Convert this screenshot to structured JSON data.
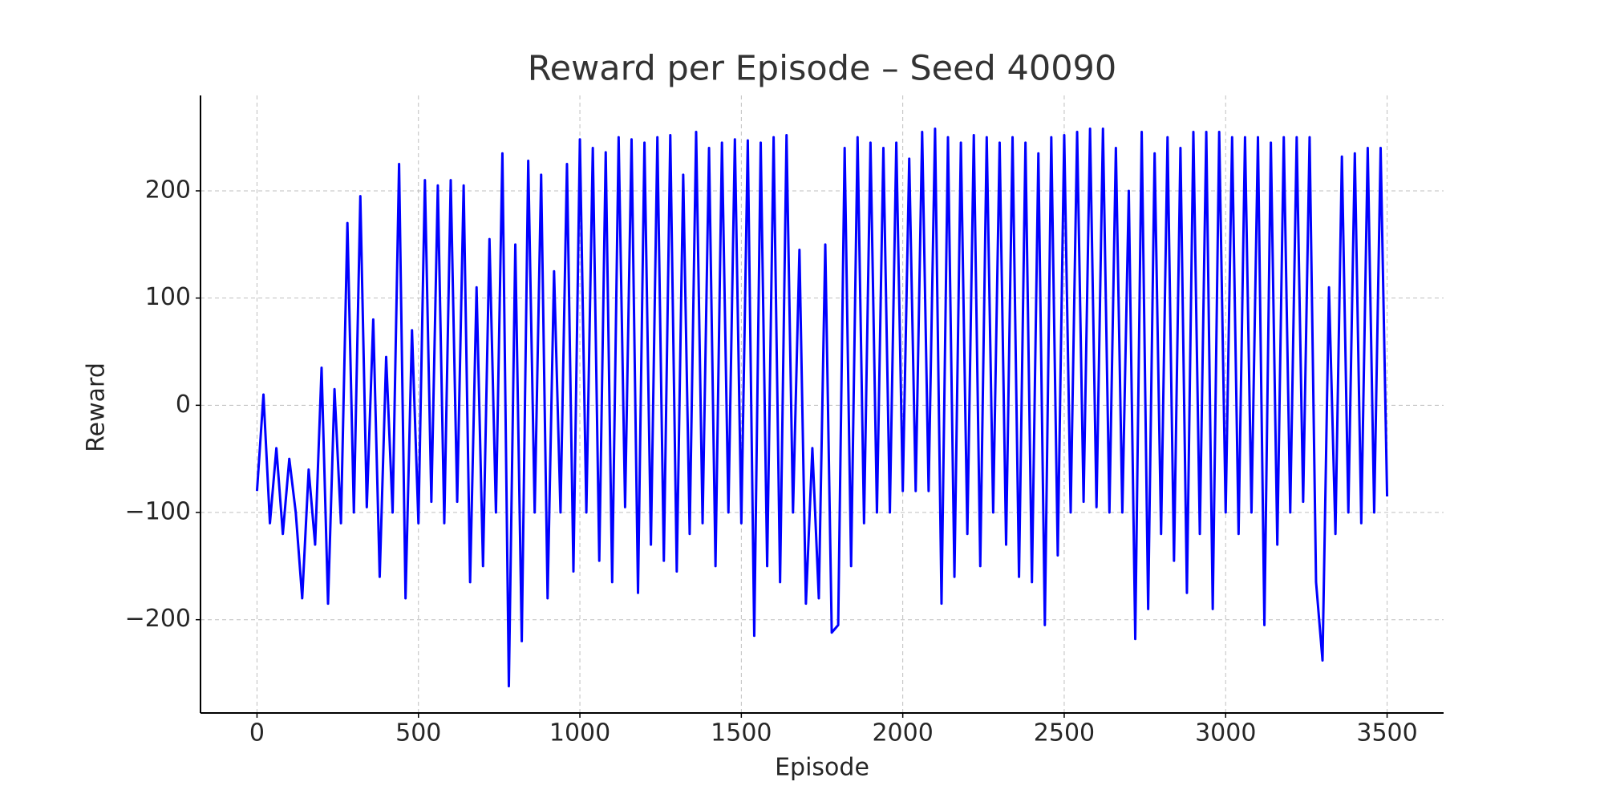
{
  "chart_data": {
    "type": "line",
    "title": "Reward per Episode – Seed 40090",
    "x_label": "Episode",
    "y_label": "Reward",
    "x": [
      0,
      20,
      40,
      60,
      80,
      100,
      120,
      140,
      160,
      180,
      200,
      220,
      240,
      260,
      280,
      300,
      320,
      340,
      360,
      380,
      400,
      420,
      440,
      460,
      480,
      500,
      520,
      540,
      560,
      580,
      600,
      620,
      640,
      660,
      680,
      700,
      720,
      740,
      760,
      780,
      800,
      820,
      840,
      860,
      880,
      900,
      920,
      940,
      960,
      980,
      1000,
      1020,
      1040,
      1060,
      1080,
      1100,
      1120,
      1140,
      1160,
      1180,
      1200,
      1220,
      1240,
      1260,
      1280,
      1300,
      1320,
      1340,
      1360,
      1380,
      1400,
      1420,
      1440,
      1460,
      1480,
      1500,
      1520,
      1540,
      1560,
      1580,
      1600,
      1620,
      1640,
      1660,
      1680,
      1700,
      1720,
      1740,
      1760,
      1780,
      1800,
      1820,
      1840,
      1860,
      1880,
      1900,
      1920,
      1940,
      1960,
      1980,
      2000,
      2020,
      2040,
      2060,
      2080,
      2100,
      2120,
      2140,
      2160,
      2180,
      2200,
      2220,
      2240,
      2260,
      2280,
      2300,
      2320,
      2340,
      2360,
      2380,
      2400,
      2420,
      2440,
      2460,
      2480,
      2500,
      2520,
      2540,
      2560,
      2580,
      2600,
      2620,
      2640,
      2660,
      2680,
      2700,
      2720,
      2740,
      2760,
      2780,
      2800,
      2820,
      2840,
      2860,
      2880,
      2900,
      2920,
      2940,
      2960,
      2980,
      3000,
      3020,
      3040,
      3060,
      3080,
      3100,
      3120,
      3140,
      3160,
      3180,
      3200,
      3220,
      3240,
      3260,
      3280,
      3300,
      3320,
      3340,
      3360,
      3380,
      3400,
      3420,
      3440,
      3460,
      3480,
      3500
    ],
    "values": [
      -80,
      10,
      -110,
      -40,
      -120,
      -50,
      -100,
      -180,
      -60,
      -130,
      35,
      -185,
      15,
      -110,
      170,
      -100,
      195,
      -95,
      80,
      -160,
      45,
      -100,
      225,
      -180,
      70,
      -110,
      210,
      -90,
      205,
      -110,
      210,
      -90,
      205,
      -165,
      110,
      -150,
      155,
      -100,
      235,
      -262,
      150,
      -220,
      228,
      -100,
      215,
      -180,
      125,
      -100,
      225,
      -155,
      248,
      -100,
      240,
      -145,
      236,
      -165,
      250,
      -95,
      248,
      -175,
      245,
      -130,
      250,
      -145,
      252,
      -155,
      215,
      -120,
      255,
      -110,
      240,
      -150,
      245,
      -100,
      248,
      -110,
      247,
      -215,
      245,
      -150,
      250,
      -165,
      252,
      -100,
      145,
      -185,
      -40,
      -180,
      150,
      -212,
      -205,
      240,
      -150,
      250,
      -110,
      245,
      -100,
      240,
      -100,
      245,
      -80,
      230,
      -80,
      255,
      -80,
      258,
      -185,
      250,
      -160,
      245,
      -120,
      252,
      -150,
      250,
      -100,
      245,
      -130,
      250,
      -160,
      245,
      -165,
      235,
      -205,
      250,
      -140,
      252,
      -100,
      255,
      -90,
      258,
      -95,
      258,
      -100,
      240,
      -100,
      200,
      -218,
      255,
      -190,
      235,
      -120,
      250,
      -145,
      240,
      -175,
      255,
      -120,
      255,
      -190,
      255,
      -100,
      250,
      -120,
      250,
      -100,
      250,
      -205,
      245,
      -130,
      250,
      -100,
      250,
      -90,
      250,
      -165,
      -238,
      110,
      -120,
      232,
      -100,
      235,
      -110,
      240,
      -100,
      240,
      -85
    ],
    "color": "#0000ff",
    "xlim": [
      -175,
      3675
    ],
    "ylim": [
      -287,
      289
    ],
    "xticks": [
      0,
      500,
      1000,
      1500,
      2000,
      2500,
      3000,
      3500
    ],
    "yticks": [
      {
        "value": -200,
        "label": "−200"
      },
      {
        "value": -100,
        "label": "−100"
      },
      0,
      100,
      200
    ],
    "grid": true
  }
}
